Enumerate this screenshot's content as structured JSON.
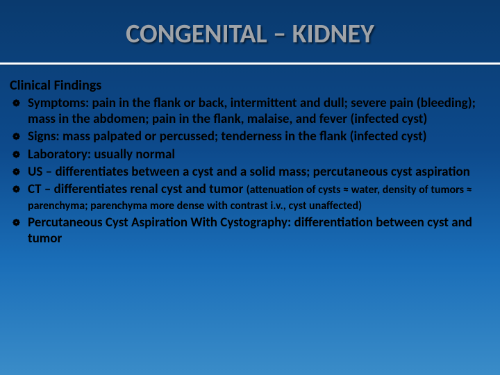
{
  "slide": {
    "title": "CONGENITAL – KIDNEY",
    "heading": "Clinical Findings",
    "bullets": [
      {
        "text": "Symptoms: pain in the flank or back, intermittent and dull; severe pain (bleeding); mass in the abdomen; pain in the flank, malaise, and fever (infected cyst)",
        "sub": ""
      },
      {
        "text": "Signs: mass palpated or percussed; tenderness in the flank (infected cyst)",
        "sub": ""
      },
      {
        "text": "Laboratory: usually normal",
        "sub": ""
      },
      {
        "text": "US – differentiates between a cyst and a solid mass; percutaneous cyst aspiration",
        "sub": ""
      },
      {
        "text": "CT – differentiates renal cyst and tumor ",
        "sub": "(attenuation of cysts ≈ water, density of tumors ≈ parenchyma; parenchyma more dense with contrast i.v., cyst unaffected)"
      },
      {
        "text": "Percutaneous Cyst Aspiration With Cystography: differentiation between cyst and tumor",
        "sub": ""
      }
    ],
    "colors": {
      "title_color": "#9fa3a8",
      "text_color": "#000000",
      "hr_color": "#ffffff",
      "bg_top": "#0a3a6e",
      "bg_bottom": "#3a8cc8"
    },
    "bullet_glyph": "❁"
  }
}
